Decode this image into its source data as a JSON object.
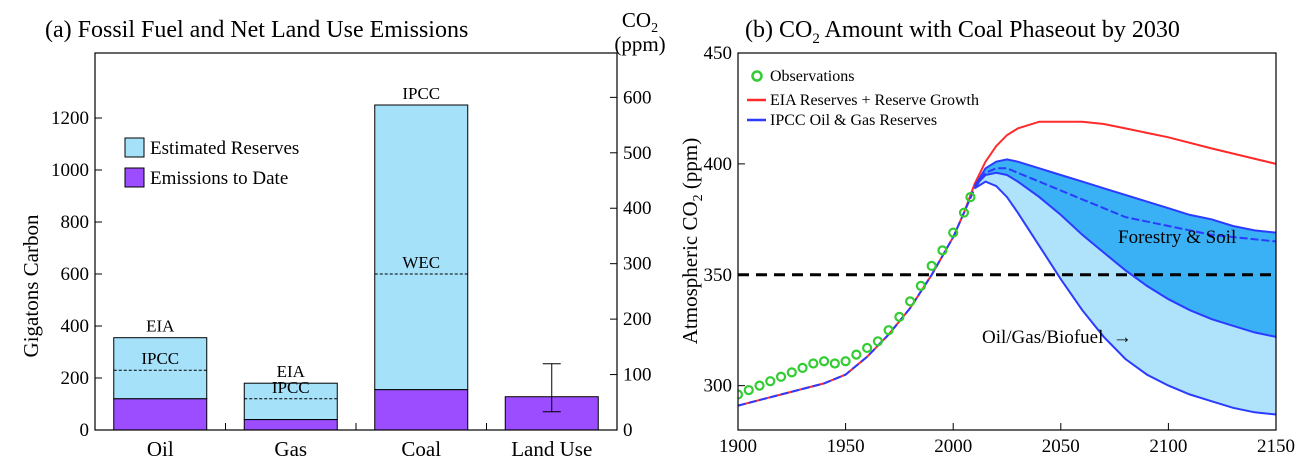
{
  "chart_data": [
    {
      "type": "bar",
      "title": "(a)  Fossil Fuel and Net Land Use Emissions",
      "ylabel": "Gigatons Carbon",
      "y2label": "CO₂ (ppm)",
      "y2label_parts": [
        "CO",
        "2",
        "(ppm)"
      ],
      "ylim": [
        0,
        1450
      ],
      "y2lim": [
        0,
        680
      ],
      "yticks": [
        0,
        200,
        400,
        600,
        800,
        1000,
        1200
      ],
      "y2ticks": [
        0,
        100,
        200,
        300,
        400,
        500,
        600
      ],
      "categories": [
        "Oil",
        "Gas",
        "Coal",
        "Land Use"
      ],
      "series": [
        {
          "name": "Estimated Reserves",
          "values": [
            235,
            140,
            1095,
            0
          ],
          "color": "#a6e1fa"
        },
        {
          "name": "Emissions to Date",
          "values": [
            120,
            40,
            155,
            128
          ],
          "color": "#9b4dff"
        }
      ],
      "totals": [
        355,
        180,
        1250,
        128
      ],
      "reference_lines": [
        {
          "category": "Oil",
          "value": 230,
          "label": "IPCC"
        },
        {
          "category": "Gas",
          "value": 120,
          "label": "IPCC"
        },
        {
          "category": "Coal",
          "value": 600,
          "label": "WEC"
        }
      ],
      "top_labels": [
        {
          "category": "Oil",
          "label": "EIA"
        },
        {
          "category": "Gas",
          "label": "EIA"
        },
        {
          "category": "Coal",
          "label": "IPCC"
        }
      ],
      "error_bar": {
        "category": "Land Use",
        "low": 70,
        "high": 255
      },
      "legend": {
        "position": "upper-left",
        "entries": [
          "Estimated Reserves",
          "Emissions to Date"
        ]
      }
    },
    {
      "type": "line",
      "title_parts": [
        "(b)  CO",
        "2",
        " Amount with Coal Phaseout by 2030"
      ],
      "ylabel_parts": [
        "Atmospheric CO",
        "2",
        " (ppm)"
      ],
      "xlim": [
        1900,
        2150
      ],
      "ylim": [
        280,
        450
      ],
      "xticks": [
        1900,
        1950,
        2000,
        2050,
        2100,
        2150
      ],
      "yticks": [
        300,
        350,
        400,
        450
      ],
      "colors": {
        "red": "#ff2a2a",
        "blue": "#2b3bff",
        "band_dark": "#3ab0f5",
        "band_light": "#aee3fb",
        "obs": "#33cc33"
      },
      "series": [
        {
          "name": "Observations",
          "x": [
            1900,
            1905,
            1910,
            1915,
            1920,
            1925,
            1930,
            1935,
            1940,
            1945,
            1950,
            1955,
            1960,
            1965,
            1970,
            1975,
            1980,
            1985,
            1990,
            1995,
            2000,
            2005,
            2008
          ],
          "y": [
            296,
            298,
            300,
            302,
            304,
            306,
            308,
            310,
            311,
            310,
            311,
            314,
            317,
            320,
            325,
            331,
            338,
            345,
            354,
            361,
            369,
            378,
            385
          ]
        },
        {
          "name": "EIA Reserves + Reserve Growth",
          "x": [
            1900,
            1920,
            1940,
            1950,
            1960,
            1970,
            1980,
            1990,
            2000,
            2005,
            2010,
            2015,
            2020,
            2025,
            2030,
            2040,
            2050,
            2060,
            2070,
            2080,
            2100,
            2120,
            2150
          ],
          "y": [
            291,
            296,
            301,
            305,
            313,
            323,
            335,
            350,
            367,
            378,
            391,
            401,
            408,
            413,
            416,
            419,
            419,
            419,
            418,
            416,
            412,
            407,
            400
          ]
        },
        {
          "name": "IPCC Oil & Gas Reserves",
          "x": [
            1900,
            1920,
            1940,
            1950,
            1960,
            1970,
            1980,
            1990,
            2000,
            2005,
            2010,
            2015,
            2020,
            2025,
            2030,
            2040,
            2050,
            2060,
            2070,
            2080,
            2100,
            2120,
            2150
          ],
          "y": [
            291,
            296,
            301,
            305,
            313,
            323,
            335,
            350,
            367,
            378,
            389,
            396,
            398,
            398,
            396,
            392,
            388,
            384,
            380,
            376,
            372,
            368,
            365
          ]
        },
        {
          "name": "upper",
          "x": [
            2010,
            2015,
            2020,
            2025,
            2030,
            2040,
            2050,
            2060,
            2070,
            2080,
            2090,
            2100,
            2110,
            2120,
            2130,
            2140,
            2150
          ],
          "y": [
            390,
            398,
            401,
            402,
            401,
            398,
            395,
            392,
            389,
            386,
            383,
            380,
            377,
            375,
            372,
            370,
            369
          ]
        },
        {
          "name": "middle",
          "x": [
            2010,
            2015,
            2020,
            2025,
            2030,
            2040,
            2050,
            2060,
            2070,
            2080,
            2090,
            2100,
            2110,
            2120,
            2130,
            2140,
            2150
          ],
          "y": [
            390,
            395,
            396,
            395,
            392,
            385,
            377,
            368,
            360,
            352,
            345,
            339,
            334,
            330,
            327,
            324,
            322
          ]
        },
        {
          "name": "lower",
          "x": [
            2010,
            2015,
            2020,
            2025,
            2030,
            2040,
            2050,
            2060,
            2070,
            2080,
            2090,
            2100,
            2110,
            2120,
            2130,
            2140,
            2150
          ],
          "y": [
            389,
            392,
            390,
            385,
            378,
            363,
            348,
            334,
            322,
            312,
            305,
            300,
            296,
            293,
            290,
            288,
            287
          ]
        }
      ],
      "hline": {
        "y": 350,
        "style": "dashed"
      },
      "annotations": [
        "Forestry & Soil",
        "Oil/Gas/Biofuel  →"
      ],
      "legend": {
        "position": "top-left",
        "entries": [
          "Observations",
          "EIA Reserves + Reserve Growth",
          "IPCC Oil & Gas Reserves"
        ]
      }
    }
  ]
}
